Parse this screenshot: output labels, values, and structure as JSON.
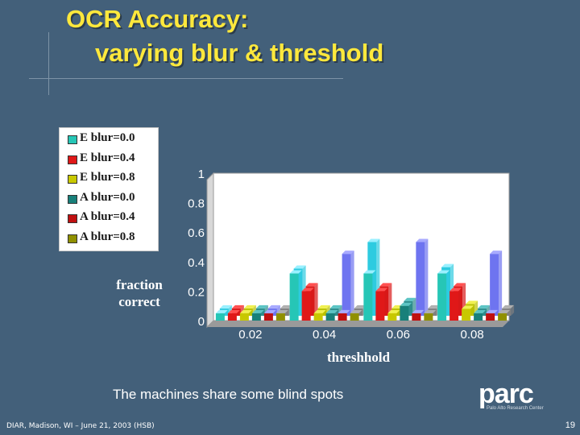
{
  "slide": {
    "title_line1": "OCR Accuracy:",
    "title_line2": "varying blur & threshold",
    "caption": "The machines share some blind spots",
    "footer": "DIAR, Madison, WI – June 21, 2003 (HSB)",
    "page_number": "19",
    "logo": "parc",
    "logo_sub": "Palo Alto Research Center"
  },
  "chart_data": {
    "type": "bar",
    "xlabel": "threshhold",
    "ylabel_line1": "fraction",
    "ylabel_line2": "correct",
    "categories": [
      "0.02",
      "0.04",
      "0.06",
      "0.08"
    ],
    "ylim": [
      0,
      1
    ],
    "yticks": [
      "0",
      "0.2",
      "0.4",
      "0.6",
      "0.8",
      "1"
    ],
    "series": [
      {
        "name": "E blur=0.0",
        "color": "#26c6b6",
        "values": [
          0.05,
          0.32,
          0.32,
          0.32
        ]
      },
      {
        "name": "E blur=0.4",
        "color": "#e01818",
        "values": [
          0.05,
          0.2,
          0.2,
          0.2
        ]
      },
      {
        "name": "E blur=0.8",
        "color": "#c8c800",
        "values": [
          0.05,
          0.05,
          0.05,
          0.08
        ]
      },
      {
        "name": "A blur=0.0",
        "color": "#18807a",
        "values": [
          0.05,
          0.05,
          0.1,
          0.05
        ]
      },
      {
        "name": "A blur=0.4",
        "color": "#c01010",
        "values": [
          0.05,
          0.05,
          0.05,
          0.05
        ]
      },
      {
        "name": "A blur=0.8",
        "color": "#909000",
        "values": [
          0.05,
          0.05,
          0.05,
          0.05
        ]
      }
    ],
    "bar_colors": {
      "back_row": [
        "#2ecbe0",
        "#d81818",
        "#b8c000",
        "#2c8c8c",
        "#6e74f0",
        "#808080"
      ],
      "tops": [
        "#9af0ff",
        "#ff5050",
        "#f0f050",
        "#5cc4c4",
        "#a8aaff",
        "#b0b0b0"
      ]
    },
    "back_row_values": {
      "0.04": [
        0.32,
        0.2,
        0.05,
        0.05,
        0.42,
        0.05
      ],
      "0.06": [
        0.5,
        0.2,
        0.05,
        0.1,
        0.5,
        0.05
      ],
      "0.08": [
        0.33,
        0.2,
        0.08,
        0.05,
        0.42,
        0.05
      ],
      "0.02": [
        0.05,
        0.05,
        0.05,
        0.05,
        0.05,
        0.05
      ]
    },
    "legend_position": "top-left",
    "grid": false
  }
}
